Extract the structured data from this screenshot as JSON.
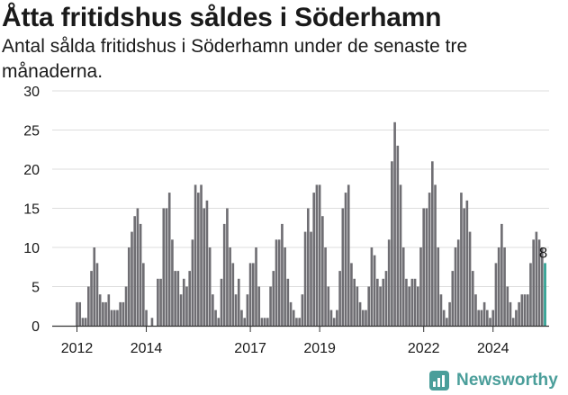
{
  "title": "Åtta fritidshus såldes i Söderhamn",
  "subtitle": "Antal sålda fritidshus i Söderhamn under de senaste tre månaderna.",
  "brand": {
    "name": "Newsworthy",
    "color": "#4a9e9a",
    "icon": "newsworthy-logo-icon"
  },
  "colors": {
    "bar": "#6f6e73",
    "highlight": "#2a9d8f",
    "grid": "#dddddd",
    "axis": "#333333"
  },
  "chart_data": {
    "type": "bar",
    "x_start": "2012-01",
    "x_end": "2025-01",
    "ylim": [
      0,
      30
    ],
    "yticks": [
      0,
      5,
      10,
      15,
      20,
      25,
      30
    ],
    "xtick_labels": [
      "2012",
      "2014",
      "2017",
      "2019",
      "2022",
      "2024"
    ],
    "xtick_months": [
      "2012-01",
      "2014-01",
      "2017-01",
      "2019-01",
      "2022-01",
      "2024-01"
    ],
    "grid": "horizontal",
    "legend": "none",
    "series": [
      {
        "values": [
          3,
          3,
          1,
          1,
          5,
          7,
          10,
          8,
          4,
          3,
          3,
          4,
          2,
          2,
          2,
          3,
          3,
          5,
          10,
          12,
          14,
          15,
          13,
          8,
          2,
          0,
          1,
          0,
          6,
          6,
          15,
          15,
          17,
          11,
          7,
          7,
          4,
          6,
          5,
          7,
          11,
          18,
          17,
          18,
          15,
          16,
          10,
          4,
          2,
          1,
          6,
          13,
          15,
          10,
          8,
          4,
          6,
          2,
          1,
          4,
          8,
          8,
          10,
          5,
          1,
          1,
          1,
          5,
          7,
          11,
          11,
          13,
          10,
          6,
          3,
          2,
          1,
          1,
          4,
          12,
          15,
          12,
          17,
          18,
          18,
          14,
          10,
          5,
          2,
          1,
          2,
          7,
          15,
          17,
          18,
          8,
          6,
          5,
          3,
          2,
          2,
          5,
          10,
          9,
          6,
          5,
          6,
          7,
          11,
          21,
          26,
          23,
          18,
          10,
          6,
          5,
          6,
          6,
          5,
          10,
          15,
          15,
          17,
          21,
          18,
          10,
          4,
          2,
          1,
          3,
          7,
          10,
          11,
          17,
          15,
          16,
          12,
          7,
          4,
          2,
          2,
          3,
          2,
          1,
          2,
          8,
          10,
          13,
          10,
          5,
          3,
          1,
          2,
          3,
          4,
          4,
          4,
          8,
          11,
          12,
          11,
          10,
          8
        ],
        "last_label": "8",
        "highlight_last": true
      }
    ]
  }
}
